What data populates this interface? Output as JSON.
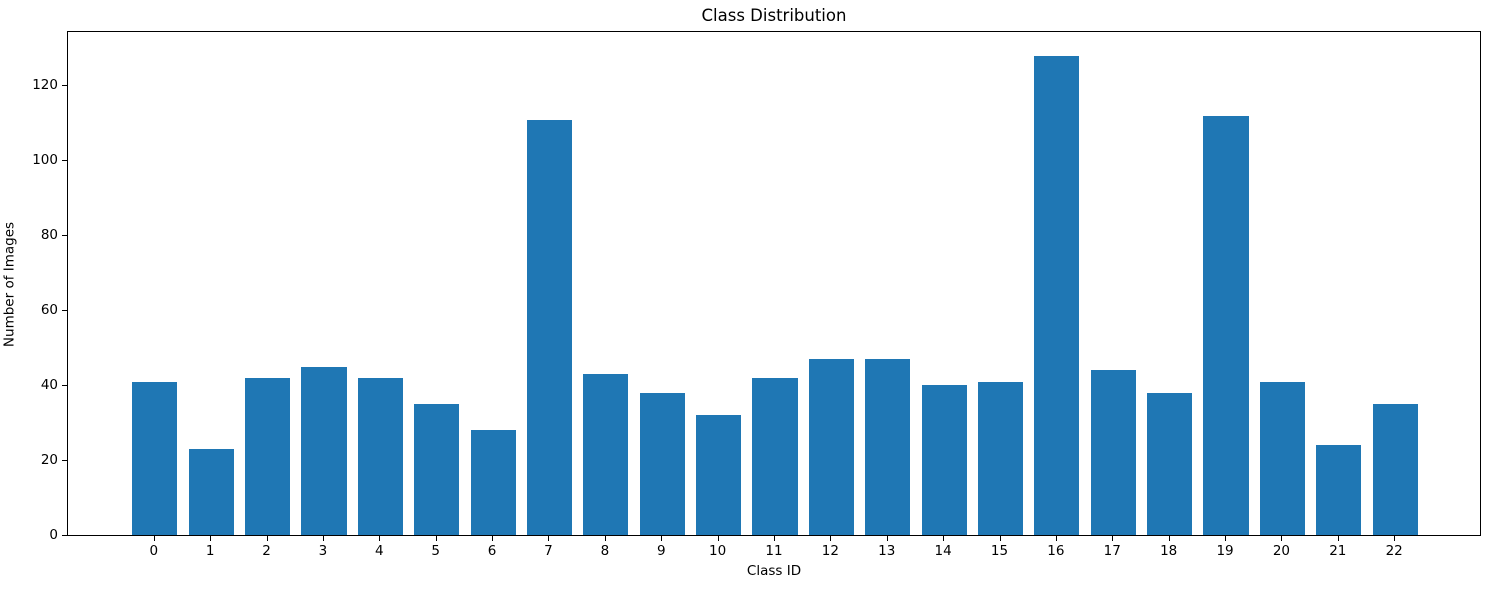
{
  "chart_data": {
    "type": "bar",
    "title": "Class Distribution",
    "xlabel": "Class ID",
    "ylabel": "Number of Images",
    "categories": [
      "0",
      "1",
      "2",
      "3",
      "4",
      "5",
      "6",
      "7",
      "8",
      "9",
      "10",
      "11",
      "12",
      "13",
      "14",
      "15",
      "16",
      "17",
      "18",
      "19",
      "20",
      "21",
      "22"
    ],
    "values": [
      41,
      23,
      42,
      45,
      42,
      35,
      28,
      111,
      43,
      38,
      32,
      42,
      47,
      47,
      40,
      41,
      128,
      44,
      38,
      112,
      41,
      24,
      35
    ],
    "yticks": [
      0,
      20,
      40,
      60,
      80,
      100,
      120
    ],
    "ylim": [
      0,
      134.4
    ],
    "bar_color": "#1f77b4",
    "axis_color": "#000000",
    "text_color": "#000000",
    "grid": false,
    "legend": null
  }
}
